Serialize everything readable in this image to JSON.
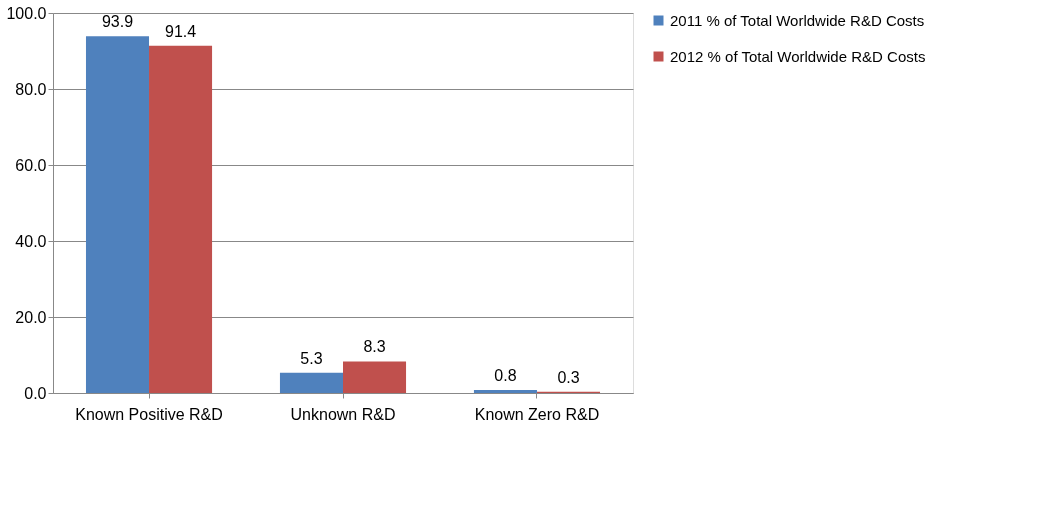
{
  "chart_data": {
    "type": "bar",
    "categories": [
      "Known Positive R&D",
      "Unknown R&D",
      "Known Zero R&D"
    ],
    "series": [
      {
        "name": "2011 % of Total Worldwide R&D Costs",
        "color": "#4f81bd",
        "values": [
          93.9,
          5.3,
          0.8
        ]
      },
      {
        "name": "2012 % of Total Worldwide R&D Costs",
        "color": "#c0504d",
        "values": [
          91.4,
          8.3,
          0.3
        ]
      }
    ],
    "ylim": [
      0,
      100
    ],
    "yticks": [
      {
        "value": 0,
        "label": "0.0"
      },
      {
        "value": 20,
        "label": "20.0"
      },
      {
        "value": 40,
        "label": "40.0"
      },
      {
        "value": 60,
        "label": "60.0"
      },
      {
        "value": 80,
        "label": "80.0"
      },
      {
        "value": 100,
        "label": "100.0"
      }
    ],
    "grid": "y",
    "legend": "right",
    "data_labels": true
  }
}
